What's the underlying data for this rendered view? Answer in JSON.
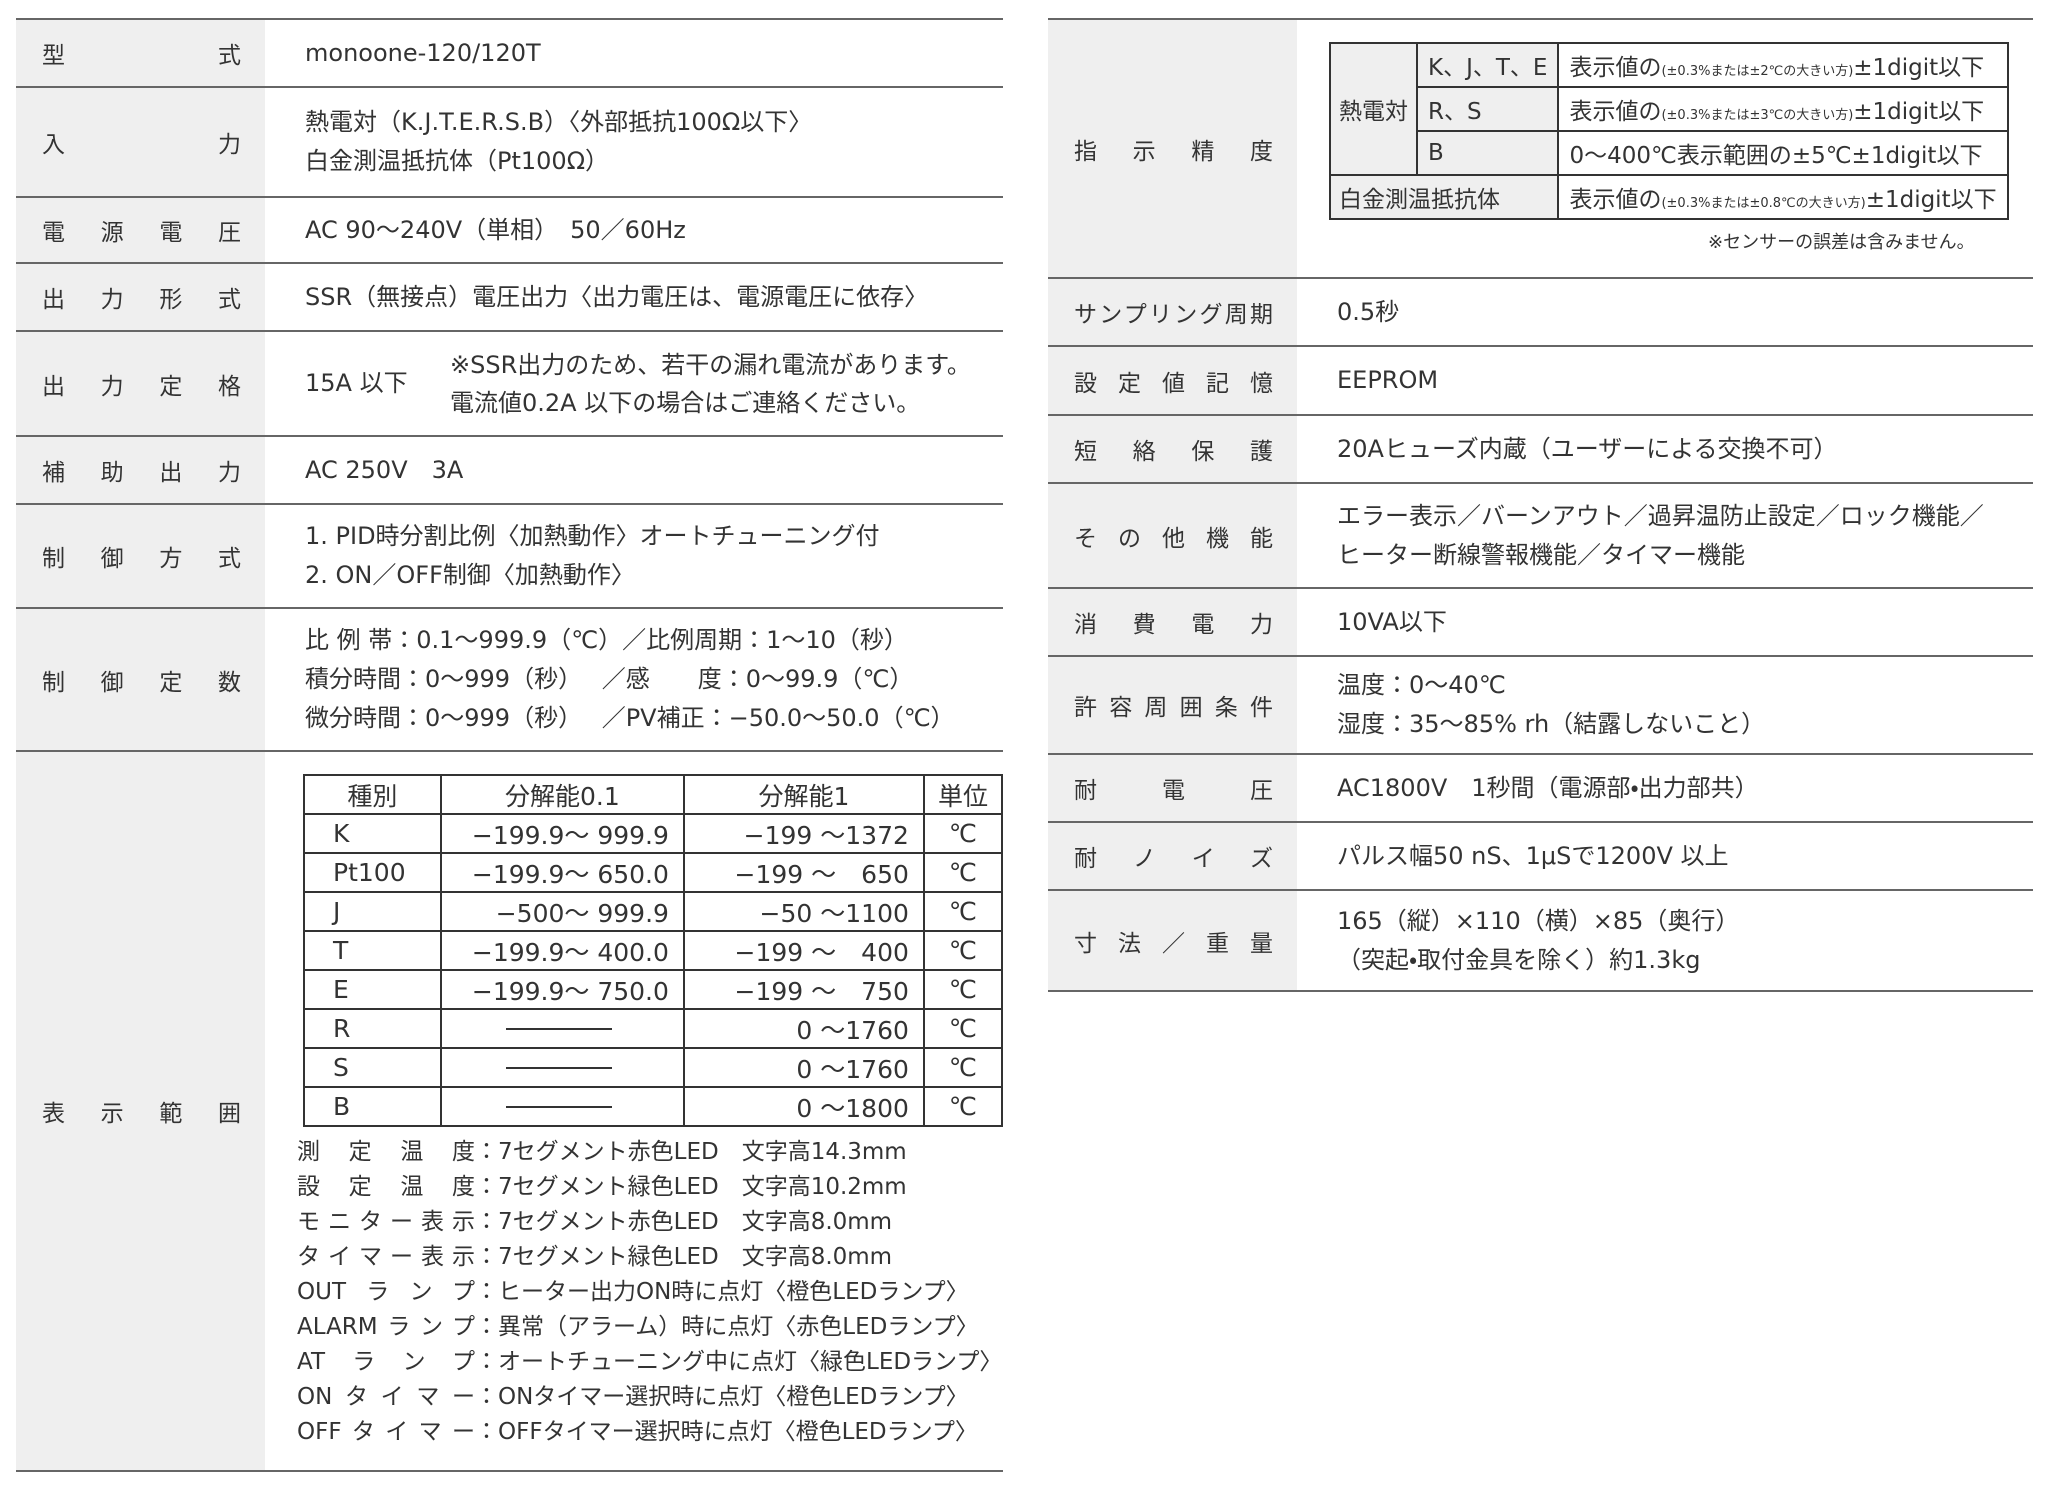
{
  "left": [
    {
      "label": "型式",
      "lines": [
        "monoone-120/120T"
      ]
    },
    {
      "label": "入力",
      "lines": [
        "熱電対（K.J.T.E.R.S.B）〈外部抵抗100Ω以下〉",
        "白金測温抵抗体（Pt100Ω）"
      ]
    },
    {
      "label": "電源電圧",
      "lines": [
        "AC 90～240V（単相）　50／60Hz"
      ]
    },
    {
      "label": "出力形式",
      "lines": [
        "SSR（無接点）電圧出力〈出力電圧は、電源電圧に依存〉"
      ]
    },
    {
      "label": "出力定格",
      "value": "15A 以下",
      "notes": [
        "※SSR出力のため、若干の漏れ電流があります。",
        "電流値0.2A 以下の場合はご連絡ください。"
      ]
    },
    {
      "label": "補助出力",
      "lines": [
        "AC 250V　3A"
      ]
    },
    {
      "label": "制御方式",
      "lines": [
        "1. PID時分割比例〈加熱動作〉オートチューニング付",
        "2. ON／OFF制御〈加熱動作〉"
      ]
    },
    {
      "label": "制御定数",
      "lines": [
        "比 例 帯：0.1～999.9（℃）／比例周期：1～10（秒）",
        "積分時間：0～999（秒）　 ／感　　度：0～99.9（℃）",
        "微分時間：0～999（秒）　 ／PV補正：−50.0～50.0（℃）"
      ]
    },
    {
      "label": "表示範囲",
      "range_table": {
        "header": [
          "種別",
          "分解能0.1",
          "分解能1",
          "単位"
        ],
        "rows": [
          [
            "K",
            "−199.9～ 999.9",
            "−199 ～1372",
            "℃"
          ],
          [
            "Pt100",
            "−199.9～ 650.0",
            "−199 ～　650",
            "℃"
          ],
          [
            "J",
            "−500～ 999.9",
            "−50 ～1100",
            "℃"
          ],
          [
            "T",
            "−199.9～ 400.0",
            "−199 ～　400",
            "℃"
          ],
          [
            "E",
            "−199.9～ 750.0",
            "−199 ～　750",
            "℃"
          ],
          [
            "R",
            null,
            "0 ～1760",
            "℃"
          ],
          [
            "S",
            null,
            "0 ～1760",
            "℃"
          ],
          [
            "B",
            null,
            "0 ～1800",
            "℃"
          ]
        ]
      },
      "items": [
        {
          "name": "測定温度",
          "value": "：7セグメント赤色LED　文字高14.3mm"
        },
        {
          "name": "設定温度",
          "value": "：7セグメント緑色LED　文字高10.2mm"
        },
        {
          "name": "モニター表示",
          "value": "：7セグメント赤色LED　文字高8.0mm"
        },
        {
          "name": "タイマー表示",
          "value": "：7セグメント緑色LED　文字高8.0mm"
        },
        {
          "name": "OUTランプ",
          "value": "：ヒーター出力ON時に点灯〈橙色LEDランプ〉"
        },
        {
          "name": "ALARMランプ",
          "value": "：異常（アラーム）時に点灯〈赤色LEDランプ〉"
        },
        {
          "name": "ATランプ",
          "value": "：オートチューニング中に点灯〈緑色LEDランプ〉"
        },
        {
          "name": "ONタイマー",
          "value": "：ONタイマー選択時に点灯〈橙色LEDランプ〉"
        },
        {
          "name": "OFFタイマー",
          "value": "：OFFタイマー選択時に点灯〈橙色LEDランプ〉"
        }
      ]
    }
  ],
  "right": [
    {
      "label": "指示精度",
      "accuracy": {
        "groups": [
          {
            "name": "熱電対",
            "rows": [
              {
                "type": "K、J、T、E",
                "parts": [
                  {
                    "text": "表示値の"
                  },
                  {
                    "text": "(±0.3%または±2℃の大きい方)",
                    "small": true
                  },
                  {
                    "text": "±1digit以下"
                  }
                ]
              },
              {
                "type": "R、S",
                "parts": [
                  {
                    "text": "表示値の"
                  },
                  {
                    "text": "(±0.3%または±3℃の大きい方)",
                    "small": true
                  },
                  {
                    "text": "±1digit以下"
                  }
                ]
              },
              {
                "type": "B",
                "parts": [
                  {
                    "text": "0～400℃表示範囲の±5℃±1digit以下"
                  }
                ]
              }
            ]
          },
          {
            "name": "白金測温抵抗体",
            "rows": [
              {
                "parts": [
                  {
                    "text": "表示値の"
                  },
                  {
                    "text": "(±0.3%または±0.8℃の大きい方)",
                    "small": true
                  },
                  {
                    "text": "±1digit以下"
                  }
                ]
              }
            ]
          }
        ],
        "note": "※センサーの誤差は含みません。"
      }
    },
    {
      "label": "サンプリング周期",
      "lines": [
        "0.5秒"
      ]
    },
    {
      "label": "設定値記憶",
      "lines": [
        "EEPROM"
      ]
    },
    {
      "label": "短絡保護",
      "lines": [
        "20Aヒューズ内蔵（ユーザーによる交換不可）"
      ]
    },
    {
      "label": "その他機能",
      "lines": [
        "エラー表示／バーンアウト／過昇温防止設定／ロック機能／",
        "ヒーター断線警報機能／タイマー機能"
      ]
    },
    {
      "label": "消費電力",
      "lines": [
        "10VA以下"
      ]
    },
    {
      "label": "許容周囲条件",
      "lines": [
        "温度：0～40℃",
        "湿度：35～85% rh（結露しないこと）"
      ]
    },
    {
      "label": "耐電圧",
      "lines": [
        "AC1800V　1秒間（電源部・出力部共）"
      ]
    },
    {
      "label": "耐ノイズ",
      "lines": [
        "パルス幅50 nS、1μSで1200V 以上"
      ]
    },
    {
      "label": "寸法／重量",
      "lines": [
        "165（縦）×110（横）×85（奥行）",
        "（突起・取付金具を除く）約1.3kg"
      ]
    }
  ]
}
